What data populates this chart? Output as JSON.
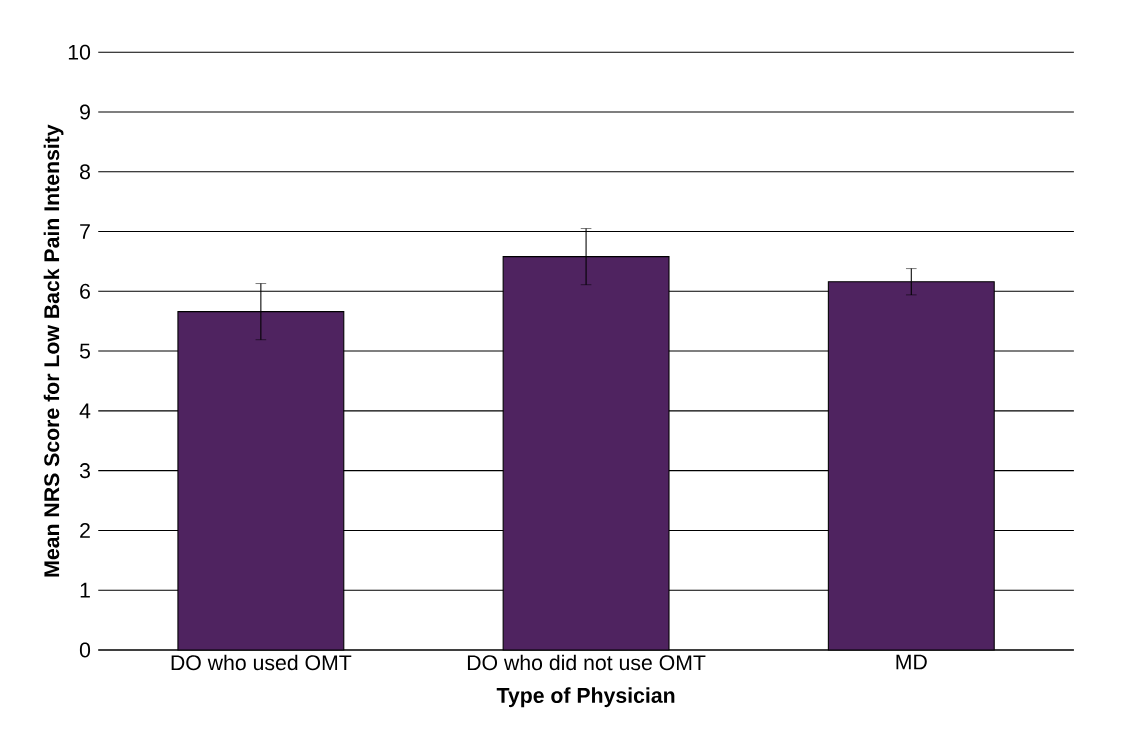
{
  "chart_data": {
    "type": "bar",
    "xlabel": "Type of Physician",
    "ylabel": "Mean NRS Score for Low Back Pain Intensity",
    "categories": [
      "DO who used OMT",
      "DO who did not use OMT",
      "MD"
    ],
    "values": [
      5.66,
      6.58,
      6.16
    ],
    "errors": [
      0.47,
      0.47,
      0.22
    ],
    "color": "#4f2360",
    "ylim": [
      0,
      10
    ],
    "yticks": [
      0,
      1,
      2,
      3,
      4,
      5,
      6,
      7,
      8,
      9,
      10
    ],
    "grid": "y"
  }
}
